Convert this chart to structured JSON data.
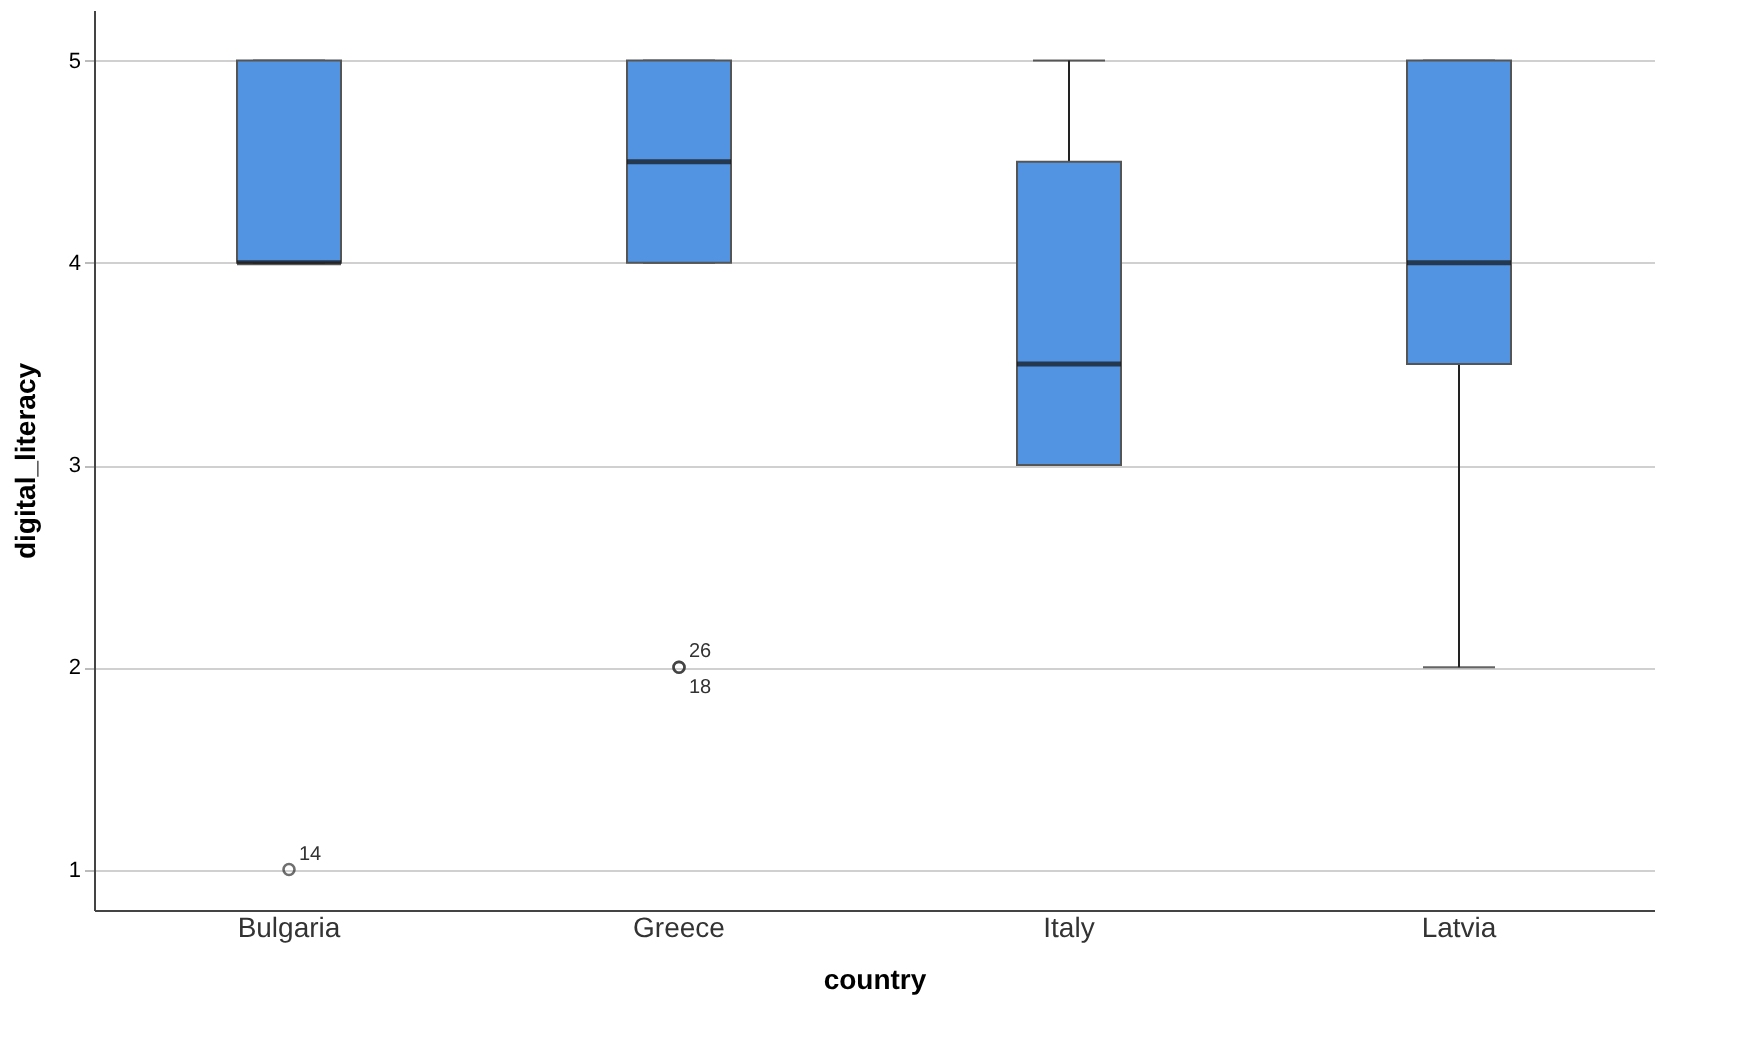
{
  "chart_data": {
    "type": "box",
    "xlabel": "country",
    "ylabel": "digital_literacy",
    "categories": [
      "Bulgaria",
      "Greece",
      "Italy",
      "Latvia"
    ],
    "color": "#5294e2",
    "boxes": [
      {
        "low": 4,
        "q1": 4,
        "median": 4,
        "q3": 5,
        "high": 5,
        "outliers": [
          1
        ]
      },
      {
        "low": 4,
        "q1": 4,
        "median": 4.5,
        "q3": 5,
        "high": 5,
        "outliers": [
          2,
          2
        ]
      },
      {
        "low": 3,
        "q1": 3,
        "median": 3.5,
        "q3": 4.5,
        "high": 5
      },
      {
        "low": 2,
        "q1": 3.5,
        "median": 4,
        "q3": 5,
        "high": 5
      }
    ],
    "ylim": [
      0.8,
      5.25
    ],
    "yticks": [
      1,
      2,
      3,
      4,
      5
    ],
    "grid": "y",
    "legend": false,
    "annotations": [
      "14",
      "26",
      "18"
    ]
  }
}
